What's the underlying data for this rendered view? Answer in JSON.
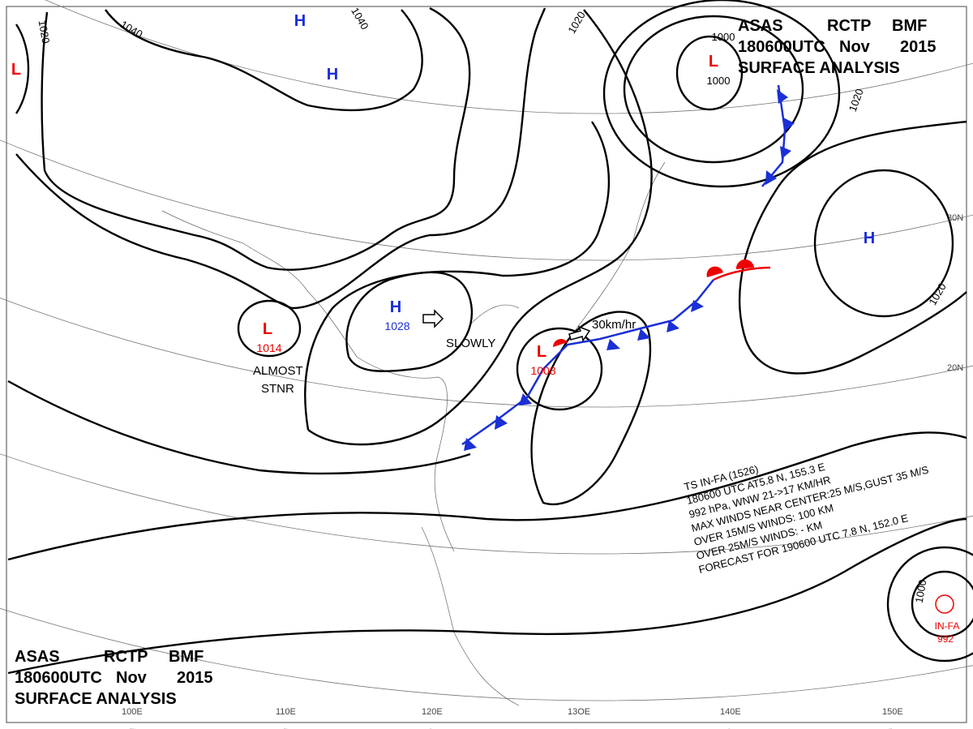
{
  "header": {
    "agency": "ASAS",
    "office": "RCTP",
    "code": "BMF",
    "time": "180600UTC",
    "month": "Nov",
    "year": "2015",
    "title": "SURFACE ANALYSIS"
  },
  "systems": [
    {
      "kind": "H"
    },
    {
      "kind": "H"
    },
    {
      "kind": "H",
      "pressure": 1028
    },
    {
      "kind": "H"
    },
    {
      "kind": "L"
    },
    {
      "kind": "L"
    },
    {
      "kind": "L",
      "pressure": 1014
    },
    {
      "kind": "L",
      "pressure": 1008
    }
  ],
  "isobar_labels": [
    "1020",
    "1040",
    "1040",
    "1020",
    "1000",
    "1000",
    "1020",
    "1020",
    "1000"
  ],
  "annotations": {
    "slowly": "SLOWLY",
    "speed": "30km/hr",
    "almost": "ALMOST",
    "stnr": "STNR"
  },
  "latitudes": [
    "30N",
    "20N"
  ],
  "longitudes": [
    "100E",
    "110E",
    "120E",
    "13OE",
    "140E",
    "150E"
  ],
  "typhoon": {
    "name": "IN-FA",
    "pressure": 992,
    "bulletin": [
      "TS  IN-FA  (1526)",
      "180600 UTC  AT5.8 N, 155.3 E",
      "992 hPa, WNW  21->17 KM/HR",
      "MAX WINDS NEAR CENTER:25 M/S,GUST 35 M/S",
      "OVER 15M/S WINDS: 100 KM",
      "OVER 25M/S WINDS: - KM",
      "FORECAST FOR 190600 UTC 7.8 N, 152.0 E"
    ]
  }
}
